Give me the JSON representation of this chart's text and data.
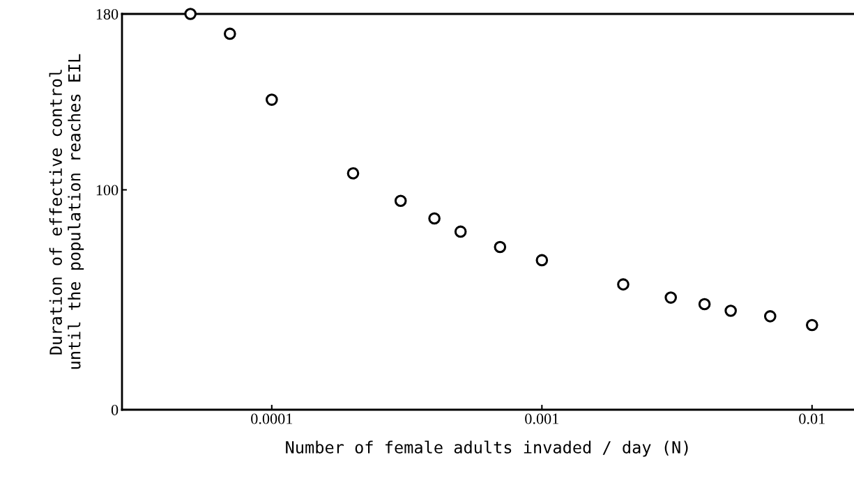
{
  "chart_data": {
    "type": "scatter",
    "xlabel": "Number of female adults invaded / day (N)",
    "ylabel": "Duration of effective control\nuntil the population reaches EIL",
    "x": [
      5e-05,
      7e-05,
      0.0001,
      0.0002,
      0.0003,
      0.0004,
      0.0005,
      0.0007,
      0.001,
      0.002,
      0.003,
      0.004,
      0.005,
      0.007,
      0.01
    ],
    "series": [
      {
        "color": "#000000",
        "values": [
          180,
          171,
          141,
          107.5,
          95,
          87,
          81,
          74,
          68,
          57,
          51,
          48,
          45,
          42.5,
          38.5
        ]
      }
    ],
    "marker": "circle",
    "log": "x",
    "grid": false,
    "legend": false,
    "xlim": [
      2.79e-05,
      0.0143
    ],
    "xticks": [
      {
        "value": 0.0001,
        "label": "0.0001"
      },
      {
        "value": 0.001,
        "label": "0.001"
      },
      {
        "value": 0.01,
        "label": "0.01"
      }
    ],
    "ylim": [
      0,
      180
    ],
    "yticks": [
      0,
      100,
      180
    ]
  }
}
